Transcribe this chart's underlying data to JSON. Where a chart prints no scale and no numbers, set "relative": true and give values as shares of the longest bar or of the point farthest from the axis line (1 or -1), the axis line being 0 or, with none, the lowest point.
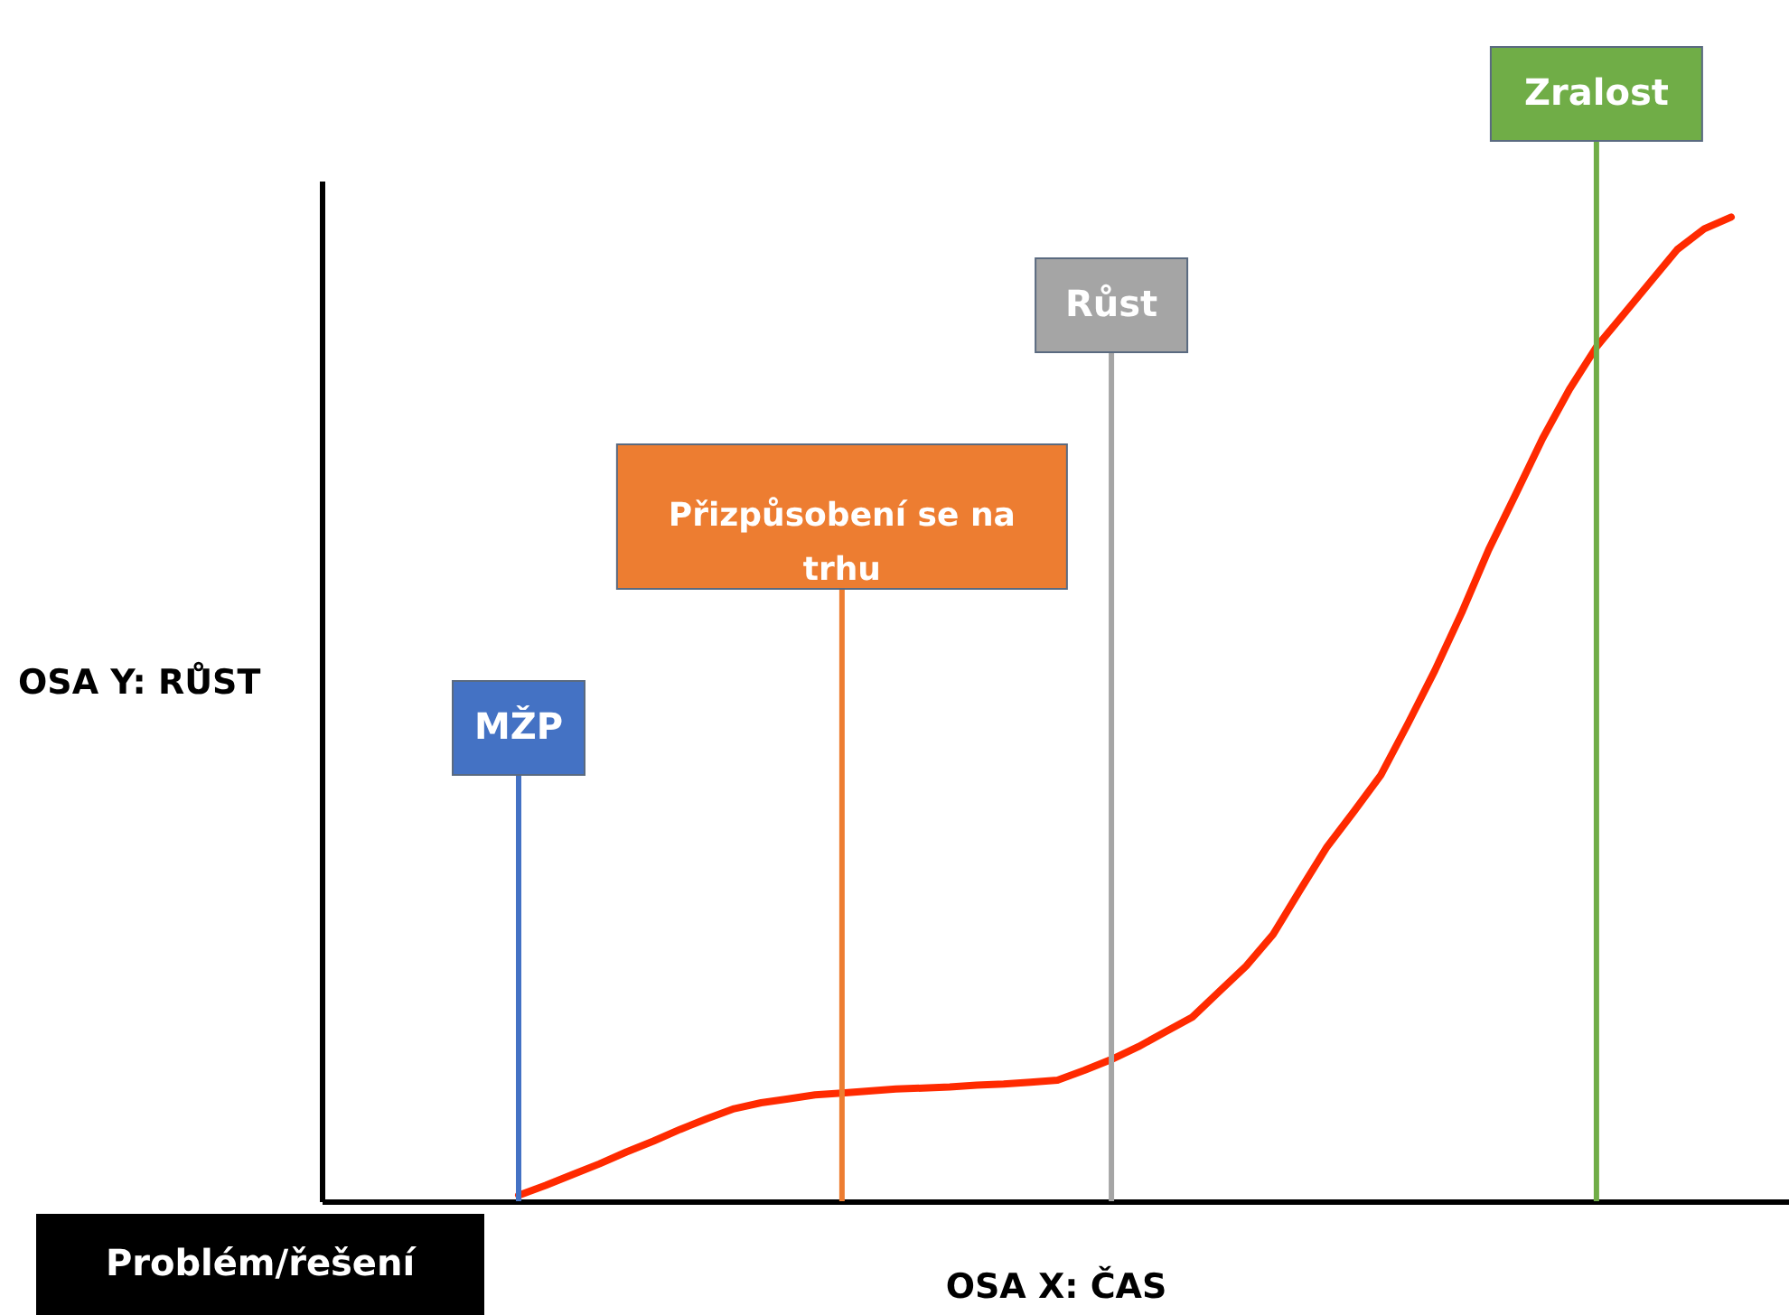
{
  "chart_data": {
    "type": "line",
    "relative": true,
    "xlabel": "OSA X: ČAS",
    "categories": [
      null,
      null,
      null,
      null,
      null,
      null,
      null,
      null,
      null,
      null,
      null,
      null,
      null,
      null,
      null,
      null,
      null,
      null,
      null,
      null,
      null,
      null,
      null,
      null,
      null,
      null,
      null,
      null,
      null,
      null,
      null,
      null,
      null,
      null,
      null,
      null,
      null,
      null,
      null,
      null,
      null,
      null,
      null,
      null,
      null,
      null
    ],
    "tick_labels": false,
    "marker": "none",
    "line_style": "solid",
    "annotations": [
      "OSA Y: RŮST",
      "MŽP",
      "Přizpůsobení  se na trhu",
      "Růst",
      "Zralost",
      "Problém/řešení"
    ],
    "series": [
      {
        "color": "#ff2a00",
        "values": [
          0.006,
          0.016,
          0.027,
          0.038,
          0.05,
          0.061,
          0.073,
          0.084,
          0.094,
          0.1,
          0.104,
          0.108,
          0.11,
          0.112,
          0.114,
          0.115,
          0.116,
          0.118,
          0.119,
          0.121,
          0.123,
          0.133,
          0.144,
          0.157,
          0.172,
          0.187,
          0.213,
          0.239,
          0.271,
          0.316,
          0.36,
          0.396,
          0.433,
          0.485,
          0.539,
          0.598,
          0.662,
          0.718,
          0.775,
          0.825,
          0.868,
          0.901,
          0.934,
          0.967,
          0.988,
          1.0
        ]
      }
    ]
  }
}
